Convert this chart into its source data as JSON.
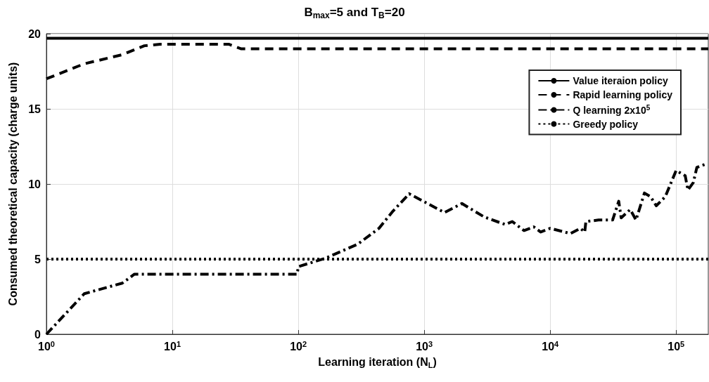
{
  "chart_data": {
    "type": "line",
    "title": "B$_{max}$=5 and T$_{B}$=20",
    "xlabel": "Learning iteration (N$_{L}$)",
    "ylabel": "Consumed theoretical capacity (charge units)",
    "log": "x",
    "xlim": [
      1,
      180000
    ],
    "xticks": [
      {
        "value": 1,
        "label": "10$^{0}$"
      },
      {
        "value": 10,
        "label": "10$^{1}$"
      },
      {
        "value": 100,
        "label": "10$^{2}$"
      },
      {
        "value": 1000,
        "label": "10$^{3}$"
      },
      {
        "value": 10000,
        "label": "10$^{4}$"
      },
      {
        "value": 100000,
        "label": "10$^{5}$"
      }
    ],
    "ylim": [
      0,
      20
    ],
    "yticks": [
      0,
      5,
      10,
      15,
      20
    ],
    "grid": true,
    "legend": "top right",
    "marker": "none",
    "series": [
      {
        "name": "Value iteraion policy",
        "color": "#000000",
        "line_style": "solid",
        "x": [
          1,
          180000
        ],
        "values": [
          19.7,
          19.7
        ]
      },
      {
        "name": "Rapid learning policy",
        "color": "#000000",
        "line_style": "dashed",
        "x": [
          1,
          2,
          4,
          6,
          8,
          28,
          35,
          180000
        ],
        "values": [
          17,
          18,
          18.6,
          19.2,
          19.3,
          19.3,
          19,
          19
        ]
      },
      {
        "name": "Q learning 2x10$^{5}$",
        "color": "#000000",
        "line_style": "dashdot",
        "x": [
          1,
          2,
          4,
          5,
          98,
          100,
          163,
          297,
          437,
          565,
          760,
          1450,
          1990,
          3000,
          4400,
          5000,
          6200,
          7400,
          8400,
          10000,
          14500,
          17400,
          18800,
          19200,
          24200,
          31300,
          35000,
          36600,
          43200,
          48000,
          56000,
          62700,
          69500,
          81900,
          100000,
          118000,
          124000,
          137000,
          146000,
          175000
        ],
        "values": [
          0,
          2.7,
          3.4,
          4,
          4,
          4.5,
          5.05,
          6,
          7.05,
          8.2,
          9.35,
          8.1,
          8.7,
          7.8,
          7.3,
          7.5,
          6.9,
          7.15,
          6.8,
          7.05,
          6.7,
          7.05,
          6.8,
          7.5,
          7.6,
          7.6,
          8.85,
          7.75,
          8.3,
          7.6,
          9.4,
          9.15,
          8.55,
          9.15,
          10.9,
          10.55,
          9.6,
          10.1,
          11.1,
          11.35
        ]
      },
      {
        "name": "Greedy policy",
        "color": "#000000",
        "line_style": "dotted",
        "x": [
          1,
          180000
        ],
        "values": [
          5,
          5
        ]
      }
    ]
  }
}
